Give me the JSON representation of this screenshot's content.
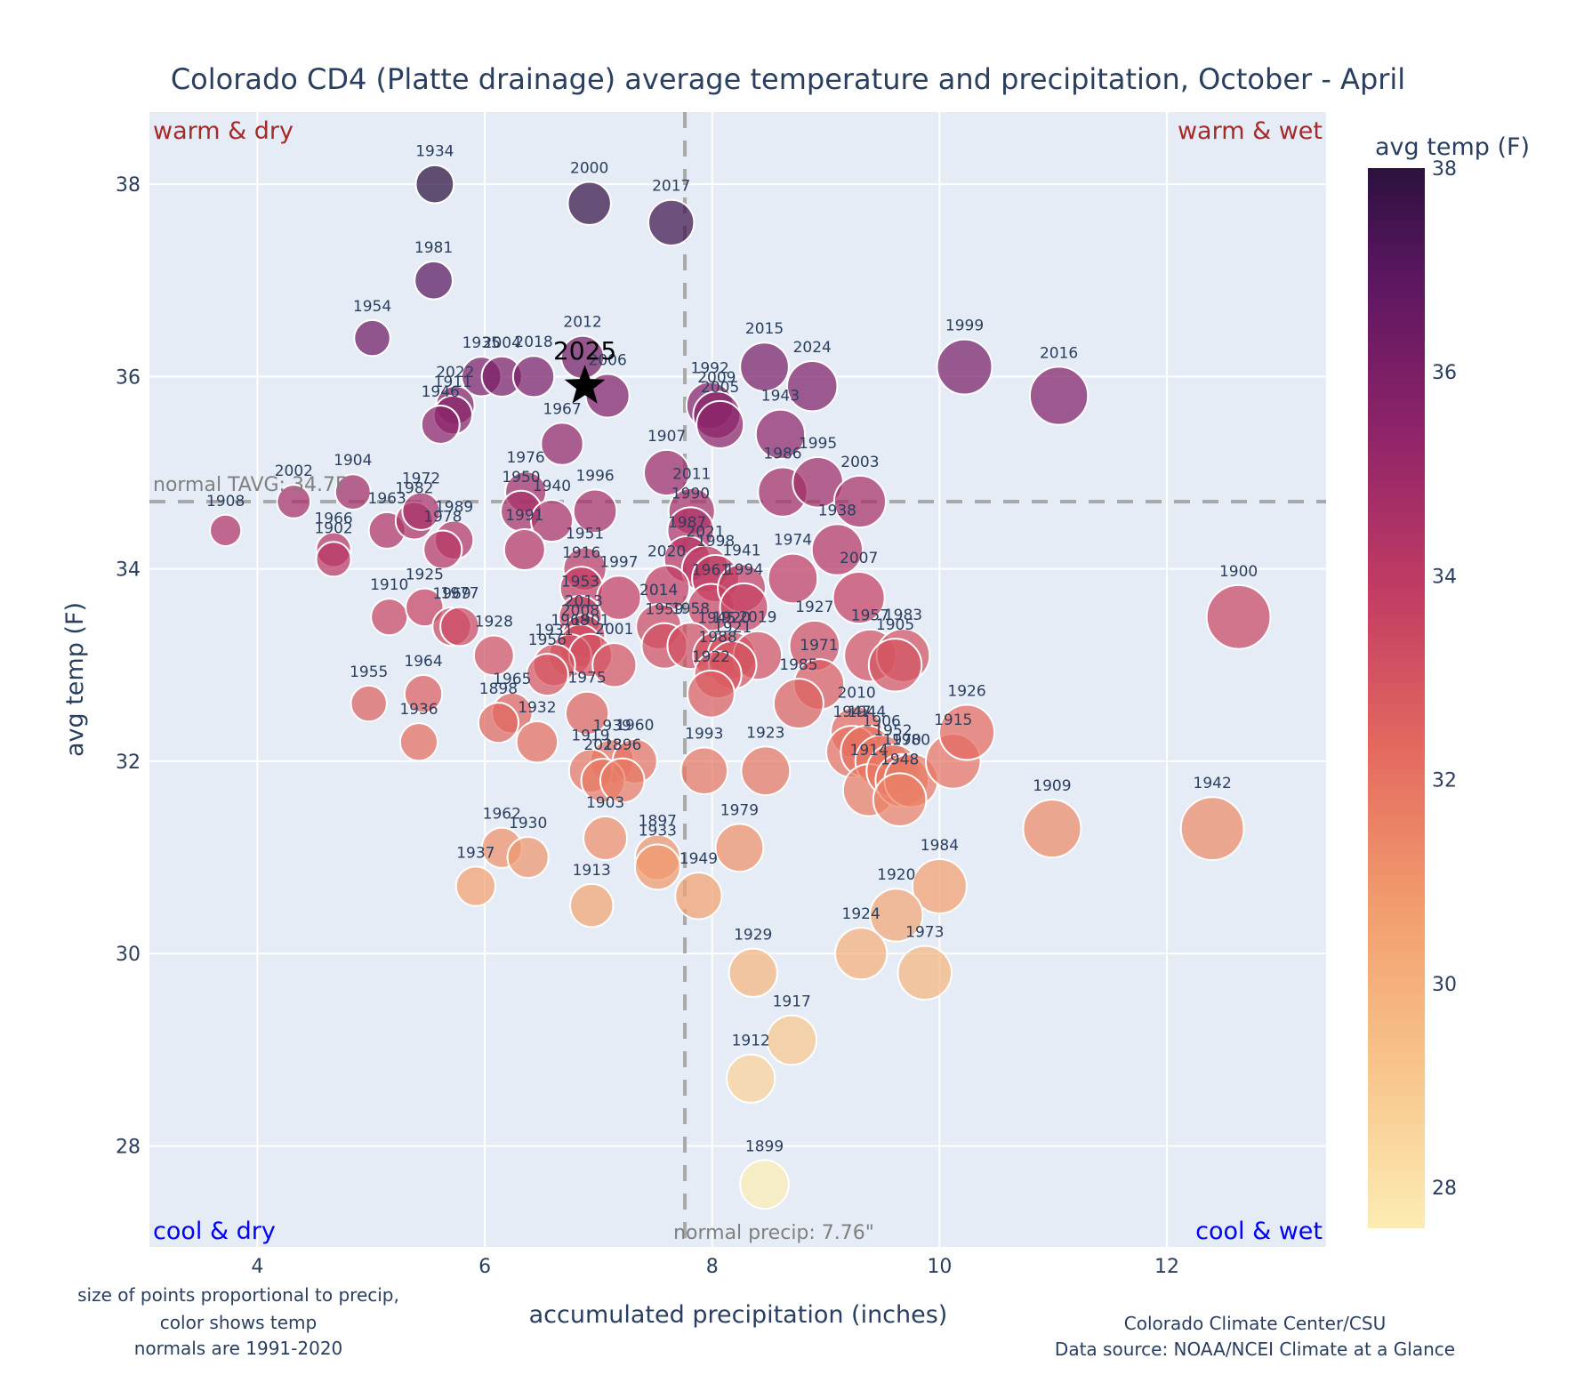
{
  "chart_data": {
    "type": "scatter",
    "title": "Colorado CD4 (Platte drainage) average temperature and precipitation, October - April",
    "xlabel": "accumulated precipitation (inches)",
    "ylabel": "avg temp (F)",
    "xlim": [
      3.05,
      13.4
    ],
    "ylim": [
      26.95,
      38.75
    ],
    "xticks": [
      4,
      6,
      8,
      10,
      12
    ],
    "yticks": [
      28,
      30,
      32,
      34,
      36,
      38
    ],
    "grid": true,
    "colorbar": {
      "title": "avg temp (F)",
      "range": [
        27.6,
        38.0
      ],
      "ticks": [
        28,
        30,
        32,
        34,
        36,
        38
      ],
      "colorscale": "magma_r-like",
      "placement": "right"
    },
    "normals": {
      "tavg": 34.7,
      "tavg_label": "normal TAVG: 34.7F",
      "precip": 7.76,
      "precip_label": "normal precip: 7.76\""
    },
    "quadrant_labels": {
      "top_left": "warm & dry",
      "top_right": "warm & wet",
      "bottom_left": "cool & dry",
      "bottom_right": "cool & wet"
    },
    "quadrant_colors": {
      "warm": "#a52a2a",
      "cool": "#0000ff"
    },
    "highlight": {
      "year": "2025",
      "precip": 6.88,
      "temp": 35.9,
      "marker": "star"
    },
    "points": [
      {
        "year": "1934",
        "precip": 5.56,
        "temp": 38.0
      },
      {
        "year": "2000",
        "precip": 6.92,
        "temp": 37.8
      },
      {
        "year": "2017",
        "precip": 7.64,
        "temp": 37.6
      },
      {
        "year": "1981",
        "precip": 5.55,
        "temp": 37.0
      },
      {
        "year": "1954",
        "precip": 5.01,
        "temp": 36.4
      },
      {
        "year": "2012",
        "precip": 6.86,
        "temp": 36.2
      },
      {
        "year": "1935",
        "precip": 5.97,
        "temp": 36.0
      },
      {
        "year": "2004",
        "precip": 6.15,
        "temp": 36.0
      },
      {
        "year": "2018",
        "precip": 6.43,
        "temp": 36.0
      },
      {
        "year": "2006",
        "precip": 7.08,
        "temp": 35.8
      },
      {
        "year": "2022",
        "precip": 5.74,
        "temp": 35.7
      },
      {
        "year": "1911",
        "precip": 5.72,
        "temp": 35.6
      },
      {
        "year": "1946",
        "precip": 5.61,
        "temp": 35.5
      },
      {
        "year": "1967",
        "precip": 6.68,
        "temp": 35.3
      },
      {
        "year": "1992",
        "precip": 7.98,
        "temp": 35.7
      },
      {
        "year": "2009",
        "precip": 8.04,
        "temp": 35.6
      },
      {
        "year": "2005",
        "precip": 8.07,
        "temp": 35.5
      },
      {
        "year": "2015",
        "precip": 8.46,
        "temp": 36.1
      },
      {
        "year": "2024",
        "precip": 8.88,
        "temp": 35.9
      },
      {
        "year": "1943",
        "precip": 8.6,
        "temp": 35.4
      },
      {
        "year": "1999",
        "precip": 10.22,
        "temp": 36.1
      },
      {
        "year": "2016",
        "precip": 11.05,
        "temp": 35.8
      },
      {
        "year": "1907",
        "precip": 7.6,
        "temp": 35.0
      },
      {
        "year": "1986",
        "precip": 8.62,
        "temp": 34.8
      },
      {
        "year": "1995",
        "precip": 8.93,
        "temp": 34.9
      },
      {
        "year": "2003",
        "precip": 9.3,
        "temp": 34.7
      },
      {
        "year": "1938",
        "precip": 9.1,
        "temp": 34.2
      },
      {
        "year": "2002",
        "precip": 4.32,
        "temp": 34.7
      },
      {
        "year": "1904",
        "precip": 4.84,
        "temp": 34.8
      },
      {
        "year": "1908",
        "precip": 3.72,
        "temp": 34.4
      },
      {
        "year": "1966",
        "precip": 4.67,
        "temp": 34.2
      },
      {
        "year": "1902",
        "precip": 4.67,
        "temp": 34.1
      },
      {
        "year": "1963",
        "precip": 5.14,
        "temp": 34.4
      },
      {
        "year": "1982",
        "precip": 5.38,
        "temp": 34.5
      },
      {
        "year": "1972",
        "precip": 5.44,
        "temp": 34.6
      },
      {
        "year": "1989",
        "precip": 5.73,
        "temp": 34.3
      },
      {
        "year": "1978",
        "precip": 5.63,
        "temp": 34.2
      },
      {
        "year": "1976",
        "precip": 6.36,
        "temp": 34.8
      },
      {
        "year": "1950",
        "precip": 6.32,
        "temp": 34.6
      },
      {
        "year": "1940",
        "precip": 6.59,
        "temp": 34.5
      },
      {
        "year": "1991",
        "precip": 6.35,
        "temp": 34.2
      },
      {
        "year": "1996",
        "precip": 6.97,
        "temp": 34.6
      },
      {
        "year": "2011",
        "precip": 7.82,
        "temp": 34.6
      },
      {
        "year": "1990",
        "precip": 7.81,
        "temp": 34.4
      },
      {
        "year": "1987",
        "precip": 7.78,
        "temp": 34.1
      },
      {
        "year": "2021",
        "precip": 7.94,
        "temp": 34.0
      },
      {
        "year": "1998",
        "precip": 8.03,
        "temp": 33.9
      },
      {
        "year": "1974",
        "precip": 8.71,
        "temp": 33.9
      },
      {
        "year": "2007",
        "precip": 9.29,
        "temp": 33.7
      },
      {
        "year": "1951",
        "precip": 6.88,
        "temp": 34.0
      },
      {
        "year": "1916",
        "precip": 6.85,
        "temp": 33.8
      },
      {
        "year": "1997",
        "precip": 7.18,
        "temp": 33.7
      },
      {
        "year": "2020",
        "precip": 7.6,
        "temp": 33.8
      },
      {
        "year": "1961",
        "precip": 7.99,
        "temp": 33.6
      },
      {
        "year": "1941",
        "precip": 8.26,
        "temp": 33.8
      },
      {
        "year": "1994",
        "precip": 8.28,
        "temp": 33.6
      },
      {
        "year": "1910",
        "precip": 5.16,
        "temp": 33.5
      },
      {
        "year": "1925",
        "precip": 5.47,
        "temp": 33.6
      },
      {
        "year": "1969",
        "precip": 5.71,
        "temp": 33.4
      },
      {
        "year": "1977",
        "precip": 5.78,
        "temp": 33.4
      },
      {
        "year": "1928",
        "precip": 6.08,
        "temp": 33.1
      },
      {
        "year": "1953",
        "precip": 6.84,
        "temp": 33.5
      },
      {
        "year": "2014",
        "precip": 7.53,
        "temp": 33.4
      },
      {
        "year": "1959",
        "precip": 7.58,
        "temp": 33.2
      },
      {
        "year": "1958",
        "precip": 7.81,
        "temp": 33.2
      },
      {
        "year": "1945",
        "precip": 8.04,
        "temp": 33.1
      },
      {
        "year": "1920",
        "precip": 8.17,
        "temp": 33.1
      },
      {
        "year": "2019",
        "precip": 8.4,
        "temp": 33.1
      },
      {
        "year": "1921",
        "precip": 8.18,
        "temp": 33.0
      },
      {
        "year": "1927",
        "precip": 8.9,
        "temp": 33.2
      },
      {
        "year": "1957",
        "precip": 9.39,
        "temp": 33.1
      },
      {
        "year": "1983",
        "precip": 9.68,
        "temp": 33.1
      },
      {
        "year": "1905",
        "precip": 9.61,
        "temp": 33.0
      },
      {
        "year": "1900",
        "precip": 12.63,
        "temp": 33.5
      },
      {
        "year": "2013",
        "precip": 6.87,
        "temp": 33.3
      },
      {
        "year": "2008",
        "precip": 6.84,
        "temp": 33.2
      },
      {
        "year": "1968",
        "precip": 6.75,
        "temp": 33.1
      },
      {
        "year": "1901",
        "precip": 6.93,
        "temp": 33.1
      },
      {
        "year": "2001",
        "precip": 7.14,
        "temp": 33.0
      },
      {
        "year": "1931",
        "precip": 6.61,
        "temp": 33.0
      },
      {
        "year": "1956",
        "precip": 6.55,
        "temp": 32.9
      },
      {
        "year": "1971",
        "precip": 8.94,
        "temp": 32.8
      },
      {
        "year": "1988",
        "precip": 8.05,
        "temp": 32.9
      },
      {
        "year": "1922",
        "precip": 7.99,
        "temp": 32.7
      },
      {
        "year": "1985",
        "precip": 8.76,
        "temp": 32.6
      },
      {
        "year": "1955",
        "precip": 4.98,
        "temp": 32.6
      },
      {
        "year": "1964",
        "precip": 5.46,
        "temp": 32.7
      },
      {
        "year": "1965",
        "precip": 6.24,
        "temp": 32.5
      },
      {
        "year": "1898",
        "precip": 6.12,
        "temp": 32.4
      },
      {
        "year": "1936",
        "precip": 5.42,
        "temp": 32.2
      },
      {
        "year": "1932",
        "precip": 6.46,
        "temp": 32.2
      },
      {
        "year": "1975",
        "precip": 6.9,
        "temp": 32.5
      },
      {
        "year": "1939",
        "precip": 7.12,
        "temp": 32.0
      },
      {
        "year": "1960",
        "precip": 7.32,
        "temp": 32.0
      },
      {
        "year": "1919",
        "precip": 6.93,
        "temp": 31.9
      },
      {
        "year": "2023",
        "precip": 7.04,
        "temp": 31.8
      },
      {
        "year": "1896",
        "precip": 7.21,
        "temp": 31.8
      },
      {
        "year": "1993",
        "precip": 7.93,
        "temp": 31.9
      },
      {
        "year": "1923",
        "precip": 8.47,
        "temp": 31.9
      },
      {
        "year": "2010",
        "precip": 9.27,
        "temp": 32.3
      },
      {
        "year": "1947",
        "precip": 9.23,
        "temp": 32.1
      },
      {
        "year": "1944",
        "precip": 9.36,
        "temp": 32.1
      },
      {
        "year": "1906",
        "precip": 9.49,
        "temp": 32.0
      },
      {
        "year": "1914",
        "precip": 9.38,
        "temp": 31.7
      },
      {
        "year": "1952",
        "precip": 9.59,
        "temp": 31.9
      },
      {
        "year": "1970",
        "precip": 9.67,
        "temp": 31.8
      },
      {
        "year": "1980",
        "precip": 9.75,
        "temp": 31.8
      },
      {
        "year": "1948",
        "precip": 9.65,
        "temp": 31.6
      },
      {
        "year": "1915",
        "precip": 10.12,
        "temp": 32.0
      },
      {
        "year": "1926",
        "precip": 10.24,
        "temp": 32.3
      },
      {
        "year": "1903",
        "precip": 7.06,
        "temp": 31.2
      },
      {
        "year": "1979",
        "precip": 8.24,
        "temp": 31.1
      },
      {
        "year": "1897",
        "precip": 7.52,
        "temp": 31.0
      },
      {
        "year": "1933",
        "precip": 7.52,
        "temp": 30.9
      },
      {
        "year": "1962",
        "precip": 6.15,
        "temp": 31.1
      },
      {
        "year": "1930",
        "precip": 6.38,
        "temp": 31.0
      },
      {
        "year": "1937",
        "precip": 5.92,
        "temp": 30.7
      },
      {
        "year": "1913",
        "precip": 6.94,
        "temp": 30.5
      },
      {
        "year": "1949",
        "precip": 7.88,
        "temp": 30.6
      },
      {
        "year": "1909",
        "precip": 10.99,
        "temp": 31.3
      },
      {
        "year": "1942",
        "precip": 12.4,
        "temp": 31.3
      },
      {
        "year": "1984",
        "precip": 10.0,
        "temp": 30.7
      },
      {
        "year": "1920b",
        "precip": 9.62,
        "temp": 30.4
      },
      {
        "year": "1924",
        "precip": 9.31,
        "temp": 30.0
      },
      {
        "year": "1973",
        "precip": 9.87,
        "temp": 29.8
      },
      {
        "year": "1929",
        "precip": 8.36,
        "temp": 29.8
      },
      {
        "year": "1917",
        "precip": 8.7,
        "temp": 29.1
      },
      {
        "year": "1912",
        "precip": 8.34,
        "temp": 28.7
      },
      {
        "year": "1899",
        "precip": 8.46,
        "temp": 27.6
      }
    ],
    "annotations": {
      "size_note_lines": [
        "size of points proportional to precip,",
        "color shows temp",
        "normals are 1991-2020"
      ],
      "credit_lines": [
        "Colorado Climate Center/CSU",
        "Data source: NOAA/NCEI Climate at a Glance"
      ]
    }
  }
}
